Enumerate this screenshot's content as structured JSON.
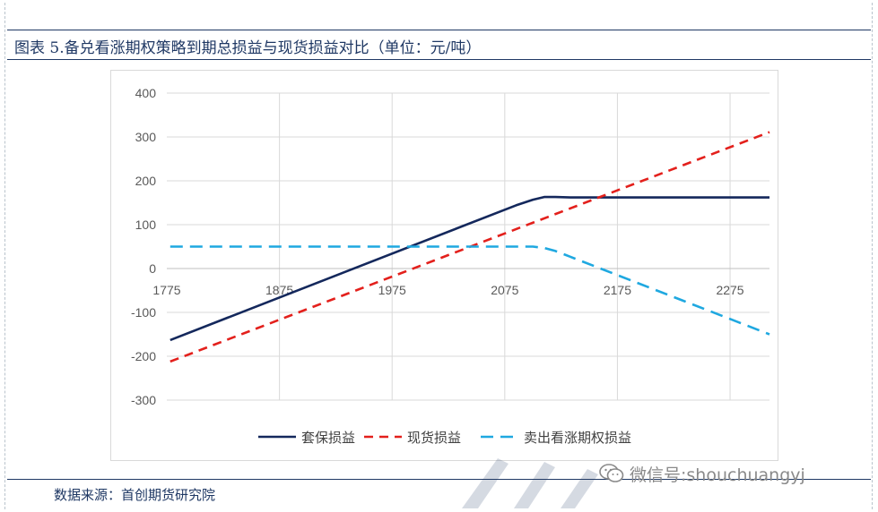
{
  "title": "图表 5.备兑看涨期权策略到期总损益与现货损益对比（单位：元/吨）",
  "source": "数据来源：首创期货研究院",
  "wechat": {
    "icon": "wechat-icon",
    "text": "微信号:shouchuangyj"
  },
  "colors": {
    "frame": "#1f3864",
    "total": "#14285c",
    "spot": "#e3201c",
    "call": "#1fa8e0",
    "grid": "#d9d9d9",
    "axis_text": "#595959"
  },
  "chart_data": {
    "type": "line",
    "xlim": [
      1775,
      2310
    ],
    "ylim": [
      -300,
      400
    ],
    "x_ticks": [
      1775,
      1875,
      1975,
      2075,
      2175,
      2275
    ],
    "y_ticks": [
      400,
      300,
      200,
      100,
      0,
      -100,
      -200,
      -300
    ],
    "grid": true,
    "legend_position": "bottom",
    "series": [
      {
        "name": "套保损益",
        "style": "solid",
        "x": [
          1778,
          2085,
          2100,
          2110,
          2120,
          2135,
          2310
        ],
        "y": [
          -163,
          144,
          157,
          163,
          163,
          162,
          162
        ]
      },
      {
        "name": "现货损益",
        "style": "dashed",
        "x": [
          1778,
          2310
        ],
        "y": [
          -212,
          311
        ]
      },
      {
        "name": "卖出看涨期权损益",
        "style": "dashed",
        "x": [
          1778,
          2100,
          2110,
          2120,
          2310
        ],
        "y": [
          50,
          50,
          47,
          40,
          -150
        ]
      }
    ]
  }
}
